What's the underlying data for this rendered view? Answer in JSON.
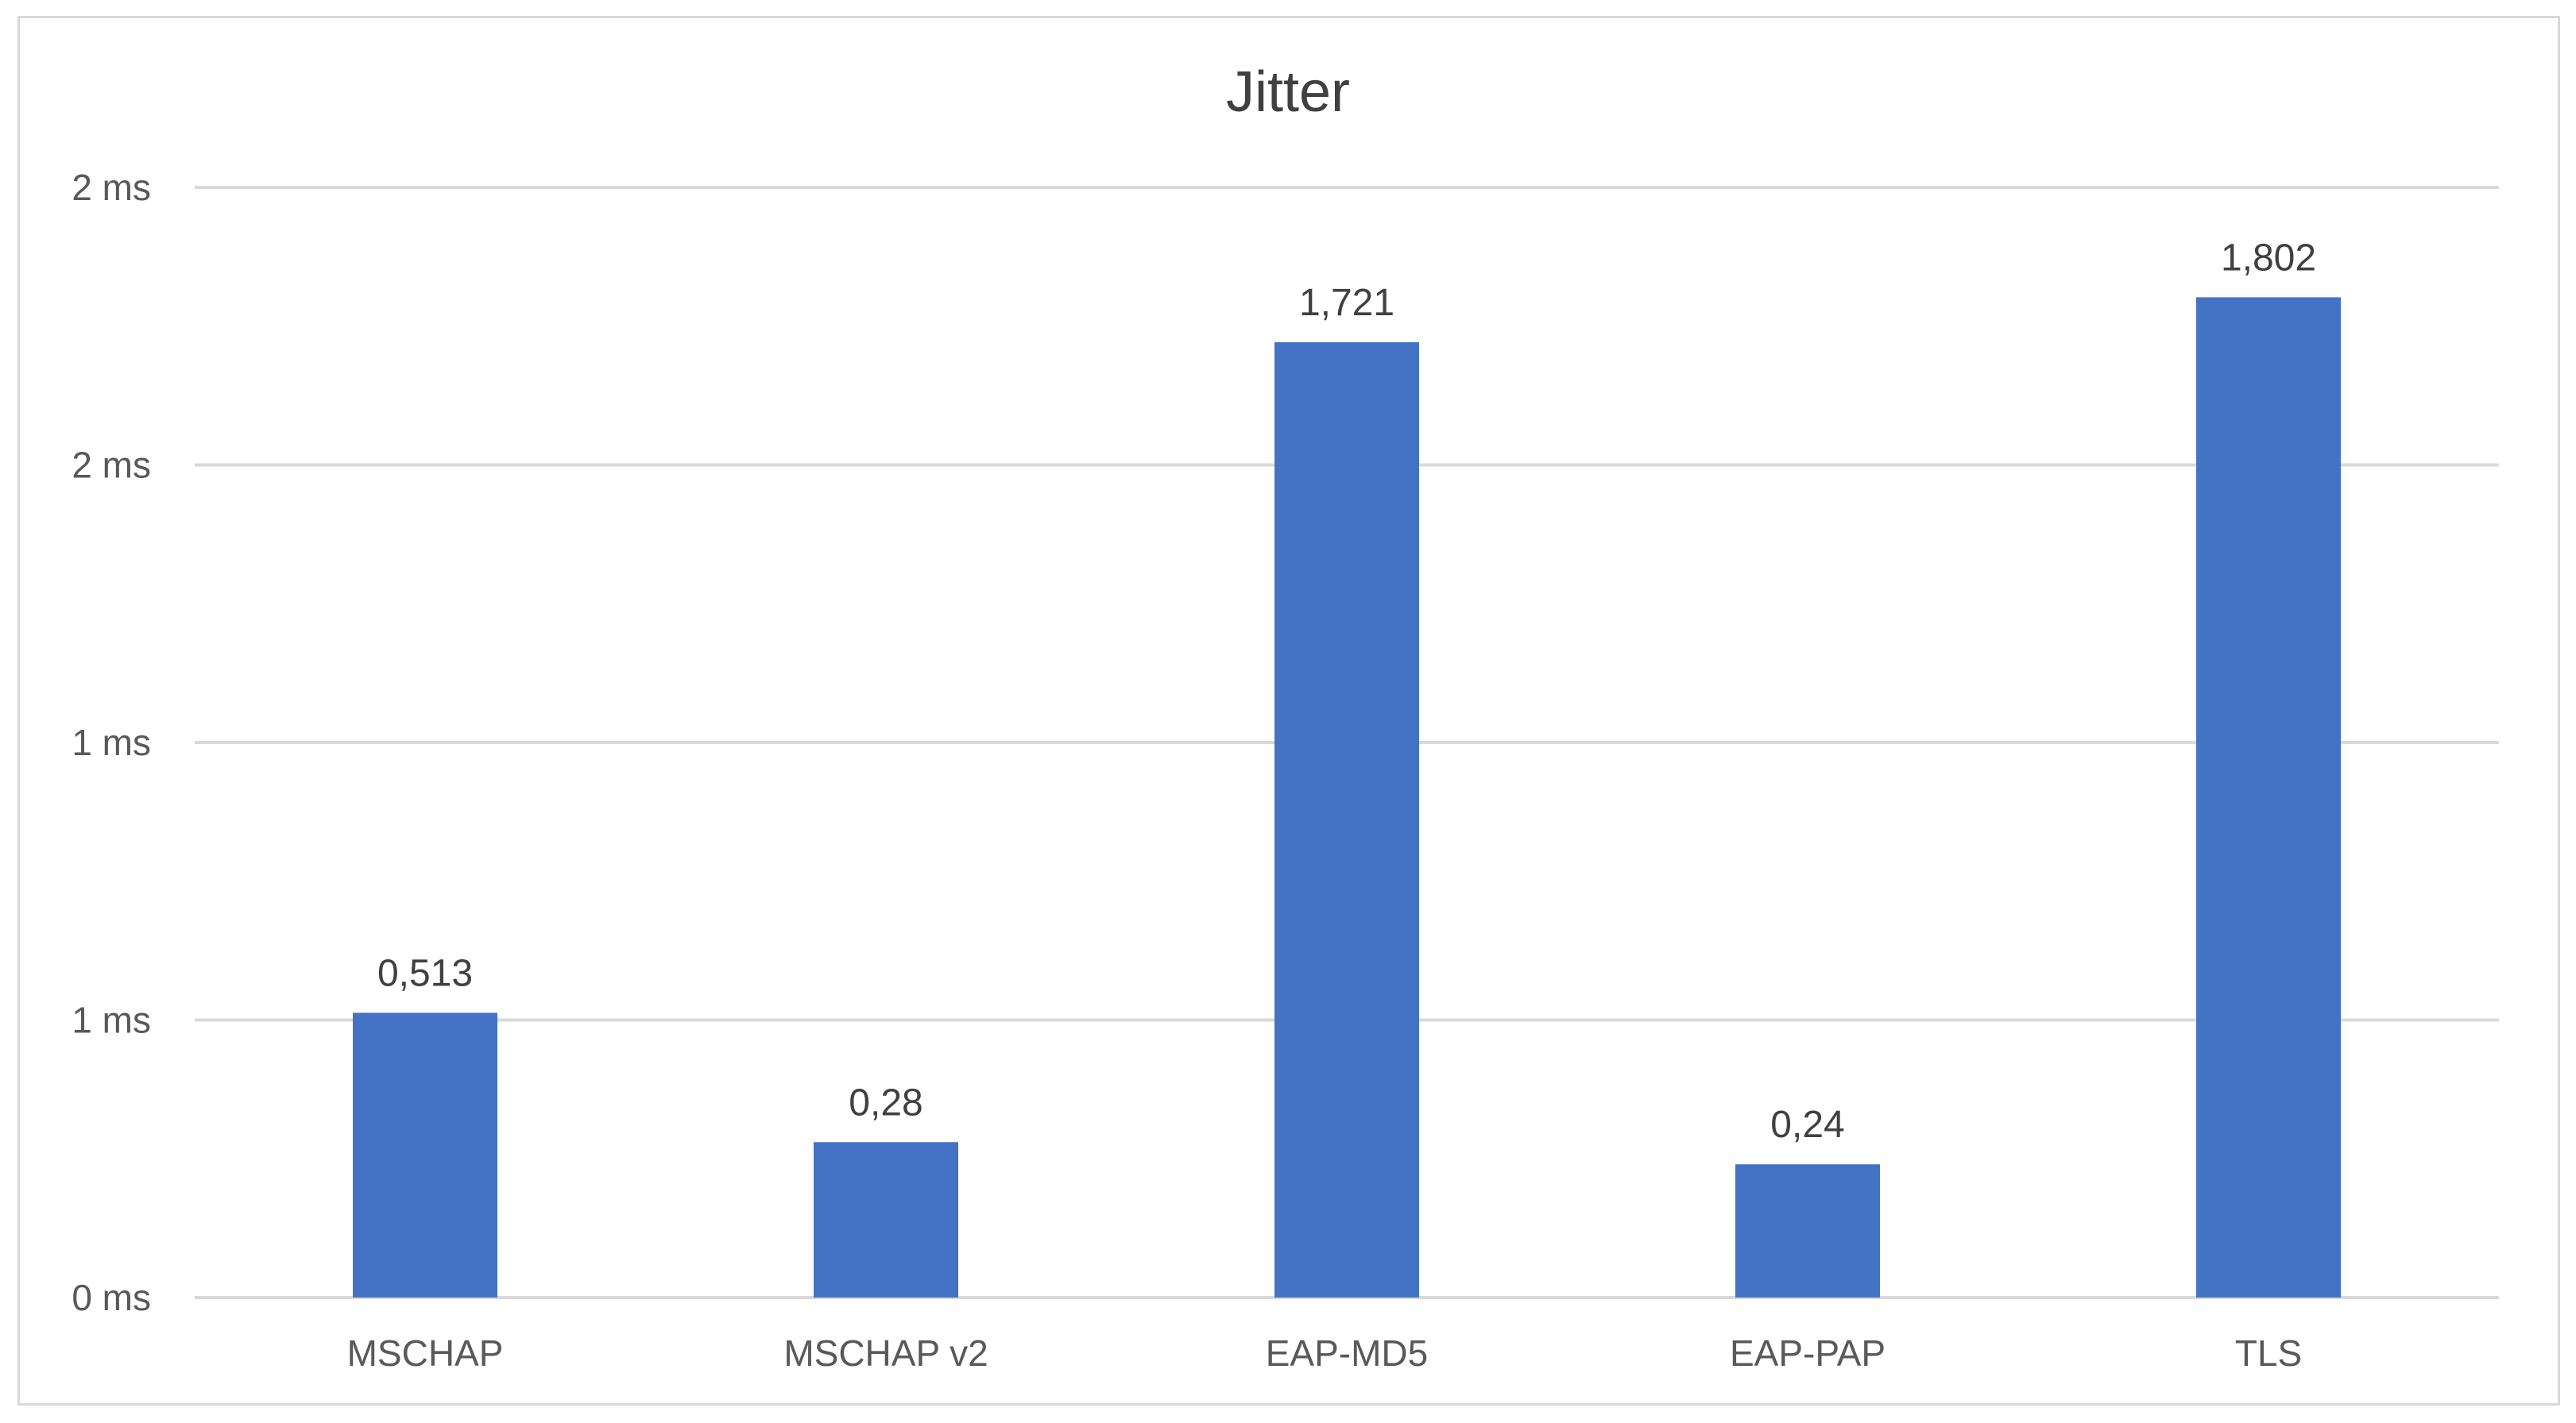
{
  "chart_data": {
    "type": "bar",
    "title": "Jitter",
    "categories": [
      "MSCHAP",
      "MSCHAP v2",
      "EAP-MD5",
      "EAP-PAP",
      "TLS"
    ],
    "values": [
      0.513,
      0.28,
      1.721,
      0.24,
      1.802
    ],
    "data_labels": [
      "0,513",
      "0,28",
      "1,721",
      "0,24",
      "1,802"
    ],
    "y_tick_values": [
      0,
      0.5,
      1,
      1.5,
      2
    ],
    "y_tick_labels": [
      "0 ms",
      "1 ms",
      "1 ms",
      "2 ms",
      "2 ms"
    ],
    "ylim": [
      0,
      2
    ],
    "xlabel": "",
    "ylabel": "",
    "grid": true,
    "legend": "none",
    "bar_color": "#4472C4",
    "grid_color": "#D9D9D9"
  }
}
